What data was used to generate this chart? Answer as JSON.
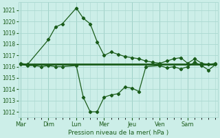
{
  "background_color": "#cceee8",
  "grid_color": "#aad8d0",
  "line_color": "#1a5c1a",
  "marker_color": "#1a5c1a",
  "xlabel": "Pression niveau de la mer( hPa )",
  "ylim": [
    1011.5,
    1021.7
  ],
  "yticks": [
    1012,
    1013,
    1014,
    1015,
    1016,
    1017,
    1018,
    1019,
    1020,
    1021
  ],
  "day_labels": [
    "Mar",
    "Dim",
    "Lun",
    "Mer",
    "Jeu",
    "Ven",
    "Sam"
  ],
  "day_positions": [
    0,
    4,
    8,
    12,
    16,
    20,
    24
  ],
  "line1_x": [
    0,
    1,
    4,
    5,
    6,
    8,
    9,
    10,
    11,
    12,
    13,
    14,
    15,
    16,
    17,
    18,
    19,
    20,
    21,
    22,
    23,
    24,
    25,
    26,
    27,
    28
  ],
  "line1_y": [
    1016.3,
    1016.2,
    1018.4,
    1019.5,
    1019.8,
    1021.2,
    1020.3,
    1019.8,
    1018.2,
    1017.0,
    1017.3,
    1017.1,
    1016.9,
    1016.8,
    1016.7,
    1016.5,
    1016.4,
    1016.3,
    1016.5,
    1016.7,
    1016.8,
    1016.3,
    1016.7,
    1016.3,
    1016.2,
    1016.3
  ],
  "line2_x": [
    0,
    1,
    2,
    3,
    4,
    5,
    6,
    8,
    9,
    10,
    11,
    12,
    13,
    14,
    15,
    16,
    17,
    18,
    20,
    21,
    22,
    23,
    24,
    25,
    26,
    27,
    28
  ],
  "line2_y": [
    1016.2,
    1016.1,
    1016.1,
    1016.0,
    1016.1,
    1016.0,
    1016.0,
    1016.1,
    1013.3,
    1012.0,
    1012.0,
    1013.3,
    1013.5,
    1013.6,
    1014.2,
    1014.1,
    1013.8,
    1016.0,
    1016.1,
    1015.9,
    1016.0,
    1015.8,
    1016.0,
    1016.4,
    1016.1,
    1015.7,
    1016.2
  ],
  "line3_x": [
    0,
    28
  ],
  "line3_y": [
    1016.2,
    1016.2
  ],
  "xlim": [
    -0.3,
    28.3
  ]
}
